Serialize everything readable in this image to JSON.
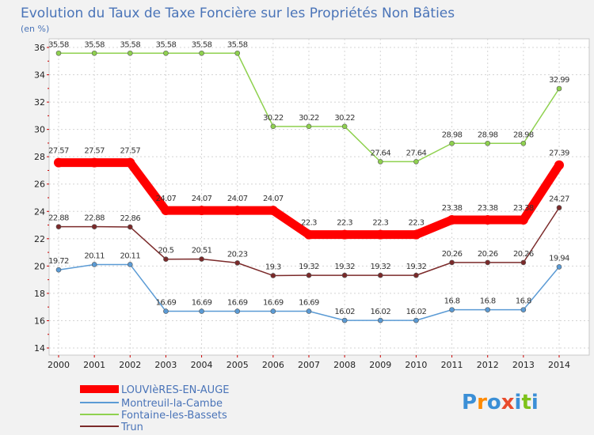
{
  "header": {
    "title": "Evolution du Taux de Taxe Foncière sur les Propriétés Non Bâties",
    "subtitle": "(en %)"
  },
  "logo": {
    "letters": [
      "P",
      "r",
      "o",
      "x",
      "i",
      "t",
      "i"
    ]
  },
  "colors": {
    "background": "#f2f2f2",
    "plot_background": "#ffffff",
    "grid": "#cccccc",
    "title": "#4a74b8",
    "logo": [
      "#3b8fd6",
      "#ff8a00",
      "#3b8fd6",
      "#e84b2c",
      "#3b8fd6",
      "#7ec21a",
      "#3b8fd6"
    ]
  },
  "chart_data": {
    "type": "line",
    "title": "Evolution du Taux de Taxe Foncière sur les Propriétés Non Bâties",
    "ylabel": "(en %)",
    "xlabel": "",
    "x": [
      "2000",
      "2001",
      "2002",
      "2003",
      "2004",
      "2005",
      "2006",
      "2007",
      "2008",
      "2009",
      "2010",
      "2011",
      "2012",
      "2013",
      "2014"
    ],
    "ylim": [
      14,
      36
    ],
    "yticks": [
      14,
      16,
      18,
      20,
      22,
      24,
      26,
      28,
      30,
      32,
      34,
      36
    ],
    "grid": true,
    "legend": "bottom-left",
    "series": [
      {
        "name": "LOUVIèRES-EN-AUGE",
        "color": "#ff0000",
        "values": [
          27.57,
          27.57,
          27.57,
          24.07,
          24.07,
          24.07,
          24.07,
          22.3,
          22.3,
          22.3,
          22.3,
          23.38,
          23.38,
          23.38,
          27.39
        ],
        "labels": [
          "27.57",
          "27.57",
          "27.57",
          "24.07",
          "24.07",
          "24.07",
          "24.07",
          "22.3",
          "22.3",
          "22.3",
          "22.3",
          "23.38",
          "23.38",
          "23.38",
          "27.39"
        ]
      },
      {
        "name": "Montreuil-la-Cambe",
        "color": "#5b9bd5",
        "values": [
          19.72,
          20.11,
          20.11,
          16.69,
          16.69,
          16.69,
          16.69,
          16.69,
          16.02,
          16.02,
          16.02,
          16.8,
          16.8,
          16.8,
          19.94
        ],
        "labels": [
          "19.72",
          "20.11",
          "20.11",
          "16.69",
          "16.69",
          "16.69",
          "16.69",
          "16.69",
          "16.02",
          "16.02",
          "16.02",
          "16.8",
          "16.8",
          "16.8",
          "19.94"
        ]
      },
      {
        "name": "Fontaine-les-Bassets",
        "color": "#8fd14f",
        "values": [
          35.58,
          35.58,
          35.58,
          35.58,
          35.58,
          35.58,
          30.22,
          30.22,
          30.22,
          27.64,
          27.64,
          28.98,
          28.98,
          28.98,
          32.99
        ],
        "labels": [
          "35.58",
          "35.58",
          "35.58",
          "35.58",
          "35.58",
          "35.58",
          "30.22",
          "30.22",
          "30.22",
          "27.64",
          "27.64",
          "28.98",
          "28.98",
          "28.98",
          "32.99"
        ]
      },
      {
        "name": "Trun",
        "color": "#7b2a2a",
        "values": [
          22.88,
          22.88,
          22.86,
          20.5,
          20.51,
          20.23,
          19.3,
          19.32,
          19.32,
          19.32,
          19.32,
          20.26,
          20.26,
          20.26,
          24.27
        ],
        "labels": [
          "22.88",
          "22.88",
          "22.86",
          "20.5",
          "20.51",
          "20.23",
          "19.3",
          "19.32",
          "19.32",
          "19.32",
          "19.32",
          "20.26",
          "20.26",
          "20.26",
          "24.27"
        ]
      }
    ]
  }
}
